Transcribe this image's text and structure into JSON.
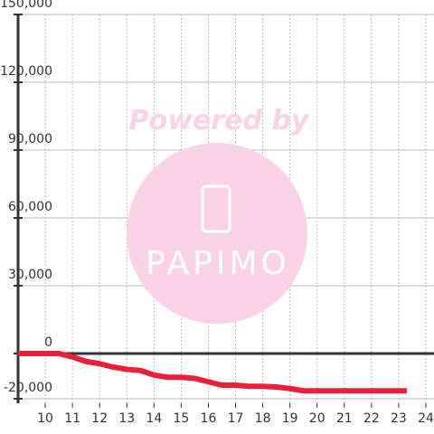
{
  "chart_data": {
    "type": "line",
    "watermark": {
      "caption": "Powered by",
      "logo": "PAPIMO"
    },
    "x": [
      9,
      10.5,
      11,
      11.5,
      12,
      12.5,
      13,
      13.5,
      14,
      14.5,
      15,
      15.5,
      16,
      16.5,
      17,
      17.5,
      18,
      18.5,
      19,
      19.5,
      20,
      21,
      22,
      23.3
    ],
    "series": [
      {
        "color": "#e8203a",
        "values": [
          0,
          0,
          -1500,
          -3500,
          -4500,
          -6000,
          -7000,
          -7500,
          -9500,
          -10500,
          -10500,
          -11000,
          -12500,
          -14000,
          -14000,
          -14500,
          -14500,
          -14800,
          -15500,
          -16500,
          -16500,
          -16500,
          -16500,
          -16500
        ]
      }
    ],
    "xlim": [
      9,
      24.3
    ],
    "xticks": [
      10,
      11,
      12,
      13,
      14,
      15,
      16,
      17,
      18,
      19,
      20,
      21,
      22,
      23,
      24
    ],
    "ylim": [
      -22000,
      150000
    ],
    "yticks": [
      {
        "value": -20000,
        "label": "-20,000"
      },
      0,
      {
        "value": 30000,
        "label": "30,000"
      },
      {
        "value": 60000,
        "label": "60,000"
      },
      {
        "value": 90000,
        "label": "90,000"
      },
      {
        "value": 120000,
        "label": "120,000"
      },
      {
        "value": 150000,
        "label": "150,000"
      }
    ],
    "grid": true
  }
}
